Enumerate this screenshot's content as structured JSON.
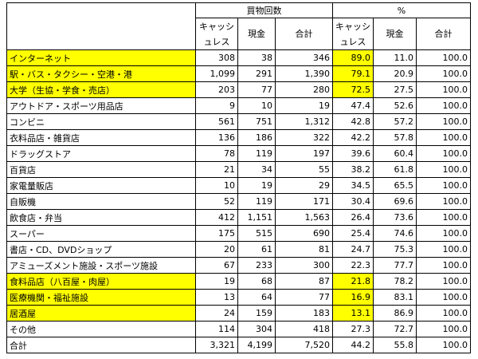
{
  "table": {
    "group_headers": [
      "買物回数",
      "%"
    ],
    "column_headers": [
      "キャッシュレス",
      "現金",
      "合計",
      "キャッシュレス",
      "現金",
      "合計"
    ],
    "rows": [
      [
        "インターネット",
        "308",
        "38",
        "346",
        "89.0",
        "11.0",
        "100.0"
      ],
      [
        "駅・バス・タクシー・空港・港",
        "1,099",
        "291",
        "1,390",
        "79.1",
        "20.9",
        "100.0"
      ],
      [
        "大学（生協・学食・売店）",
        "203",
        "77",
        "280",
        "72.5",
        "27.5",
        "100.0"
      ],
      [
        "アウトドア・スポーツ用品店",
        "9",
        "10",
        "19",
        "47.4",
        "52.6",
        "100.0"
      ],
      [
        "コンビニ",
        "561",
        "751",
        "1,312",
        "42.8",
        "57.2",
        "100.0"
      ],
      [
        "衣料品店・雑貨店",
        "136",
        "186",
        "322",
        "42.2",
        "57.8",
        "100.0"
      ],
      [
        "ドラッグストア",
        "78",
        "119",
        "197",
        "39.6",
        "60.4",
        "100.0"
      ],
      [
        "百貨店",
        "21",
        "34",
        "55",
        "38.2",
        "61.8",
        "100.0"
      ],
      [
        "家電量販店",
        "10",
        "19",
        "29",
        "34.5",
        "65.5",
        "100.0"
      ],
      [
        "自販機",
        "52",
        "119",
        "171",
        "30.4",
        "69.6",
        "100.0"
      ],
      [
        "飲食店・弁当",
        "412",
        "1,151",
        "1,563",
        "26.4",
        "73.6",
        "100.0"
      ],
      [
        "スーパー",
        "175",
        "515",
        "690",
        "25.4",
        "74.6",
        "100.0"
      ],
      [
        "書店・CD、DVDショップ",
        "20",
        "61",
        "81",
        "24.7",
        "75.3",
        "100.0"
      ],
      [
        "アミューズメント施設・スポーツ施設",
        "67",
        "233",
        "300",
        "22.3",
        "77.7",
        "100.0"
      ],
      [
        "食料品店（八百屋・肉屋）",
        "19",
        "68",
        "87",
        "21.8",
        "78.2",
        "100.0"
      ],
      [
        "医療機関・福祉施設",
        "13",
        "64",
        "77",
        "16.9",
        "83.1",
        "100.0"
      ],
      [
        "居酒屋",
        "24",
        "159",
        "183",
        "13.1",
        "86.9",
        "100.0"
      ],
      [
        "その他",
        "114",
        "304",
        "418",
        "27.3",
        "72.7",
        "100.0"
      ],
      [
        "合計",
        "3,321",
        "4,199",
        "7,520",
        "44.2",
        "55.8",
        "100.0"
      ]
    ],
    "highlight_color": "#ffff00",
    "highlighted_rows": [
      0,
      1,
      2,
      14,
      15,
      16
    ],
    "highlighted_column": 4
  }
}
